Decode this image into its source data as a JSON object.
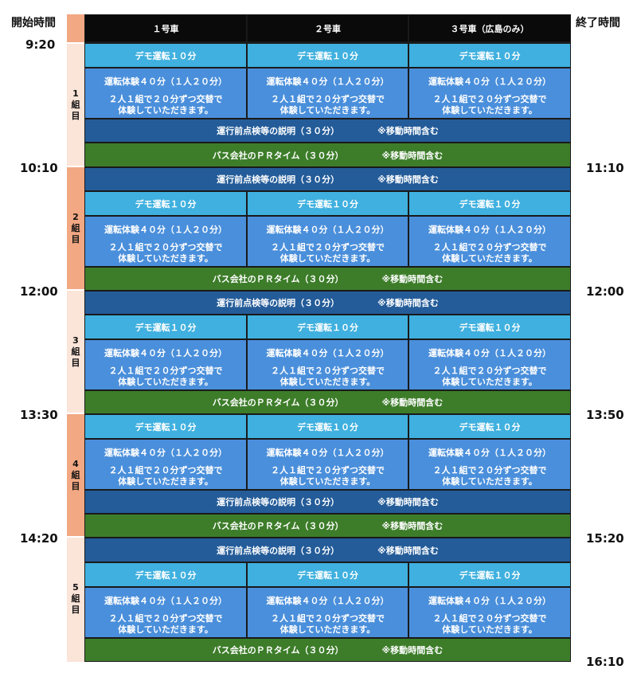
{
  "header": {
    "start_label": "開始時間",
    "end_label": "終了時間",
    "columns": [
      "１号車",
      "２号車",
      "３号車（広島のみ）"
    ]
  },
  "start_times": [
    "9:20",
    "10:10",
    "12:00",
    "13:30",
    "14:20"
  ],
  "end_times": [
    "11:10",
    "12:00",
    "13:50",
    "15:20",
    "16:10"
  ],
  "groups": [
    "1\n組\n目",
    "2\n組\n目",
    "3\n組\n目",
    "4\n組\n目",
    "5\n組\n目"
  ],
  "blocks": {
    "demo": "デモ運転１０分",
    "drive": "運転体験４０分（１人２０分）",
    "pair": "２人１組で２０分ずつ交替で\n体験していただきます。",
    "briefing": "運行前点検等の説明（３０分）",
    "pr": "バス会社のＰＲタイム（３０分）",
    "move_note": "※移動時間含む"
  },
  "colors": {
    "header_bg": "#0a0a0a",
    "demo_bg": "#3fb0df",
    "drive_bg": "#4a8fdb",
    "briefing_bg": "#245c99",
    "pr_bg": "#3d7d2a",
    "strip_light": "#fbe4d8",
    "strip_dark": "#f2a883"
  }
}
